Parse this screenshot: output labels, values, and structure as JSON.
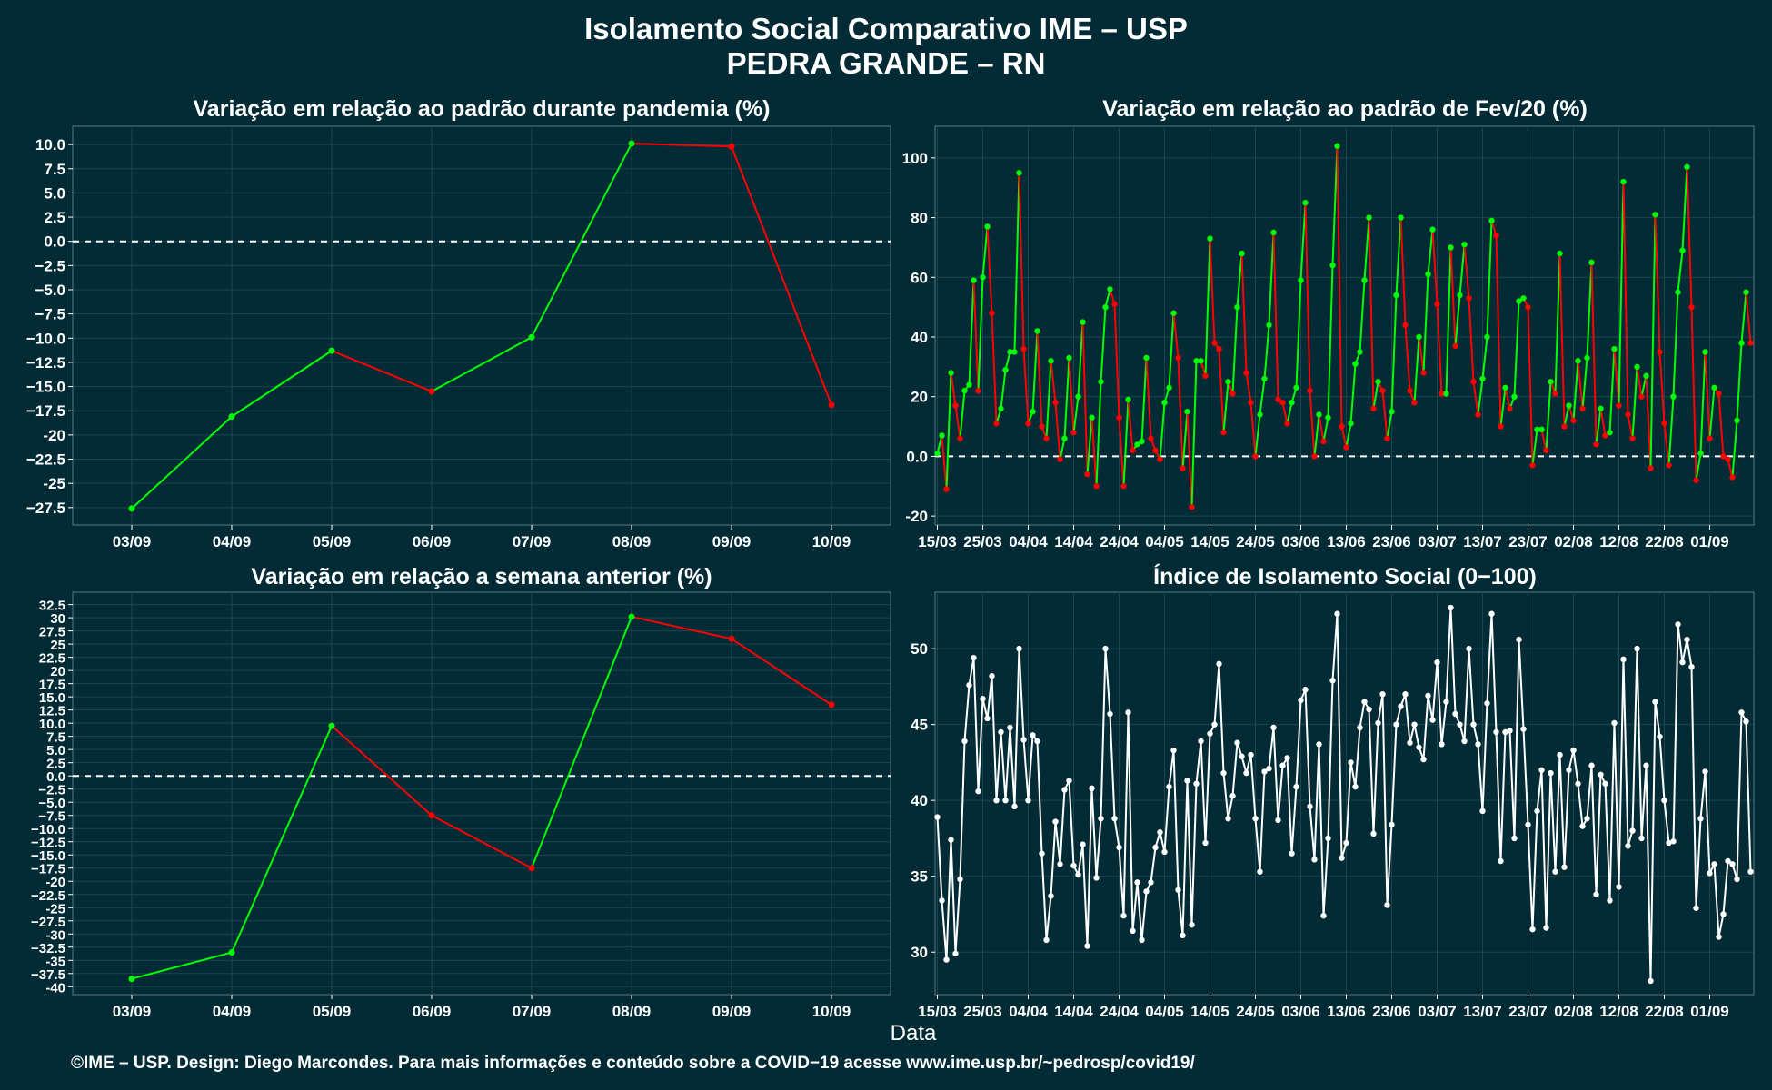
{
  "title_line1": "Isolamento Social Comparativo IME – USP",
  "title_line2": "PEDRA GRANDE – RN",
  "xlabel": "Data",
  "caption": "©IME – USP. Design: Diego Marcondes. Para mais informações e conteúdo sobre a COVID−19 acesse www.ime.usp.br/~pedrosp/covid19/",
  "colors": {
    "background": "#022b36",
    "positive": "#00ff00",
    "negative": "#ff0000",
    "index_line": "#ffffff",
    "grid": "#1c4550"
  },
  "chart_data": [
    {
      "id": "pandemia",
      "type": "line",
      "title": "Variação em relação ao padrão durante pandemia (%)",
      "categories": [
        "03/09",
        "04/09",
        "05/09",
        "06/09",
        "07/09",
        "08/09",
        "09/09",
        "10/09"
      ],
      "values": [
        -27.6,
        -18.1,
        -11.3,
        -15.5,
        -9.9,
        10.1,
        9.8,
        -16.9
      ],
      "ylim": [
        -29.3,
        11.7
      ],
      "yticks": [
        10.0,
        7.5,
        5.0,
        2.5,
        0.0,
        -2.5,
        -5.0,
        -7.5,
        -10.0,
        -12.5,
        -15.0,
        -17.5,
        -20.0,
        -22.5,
        -25.0,
        -27.5
      ],
      "zero_line": true,
      "color_rule": "green where the value rises, red where it falls"
    },
    {
      "id": "fev20",
      "type": "line",
      "title": "Variação em relação ao padrão de Fev/20 (%)",
      "x_tick_labels": [
        "15/03",
        "25/03",
        "04/04",
        "14/04",
        "24/04",
        "04/05",
        "14/05",
        "24/05",
        "03/06",
        "13/06",
        "23/06",
        "03/07",
        "13/07",
        "23/07",
        "02/08",
        "12/08",
        "22/08",
        "01/09"
      ],
      "start_date": "15/03",
      "values": [
        1,
        7,
        -11,
        28,
        17,
        6,
        22,
        24,
        59,
        22,
        60,
        77,
        48,
        11,
        16,
        29,
        35,
        35,
        95,
        36,
        11,
        15,
        42,
        10,
        6,
        32,
        18,
        -1,
        6,
        33,
        8,
        20,
        45,
        -6,
        13,
        -10,
        25,
        50,
        56,
        51,
        13,
        -10,
        19,
        2,
        4,
        5,
        33,
        6,
        2,
        -1,
        18,
        23,
        48,
        33,
        -4,
        15,
        -17,
        32,
        32,
        27,
        73,
        38,
        36,
        8,
        25,
        21,
        50,
        68,
        28,
        18,
        0,
        14,
        26,
        44,
        75,
        19,
        18,
        11,
        18,
        23,
        59,
        85,
        22,
        0,
        14,
        5,
        13,
        64,
        104,
        10,
        3,
        11,
        31,
        35,
        59,
        80,
        16,
        25,
        22,
        6,
        15,
        54,
        80,
        44,
        22,
        18,
        40,
        28,
        61,
        76,
        51,
        21,
        21,
        70,
        37,
        54,
        71,
        53,
        25,
        14,
        26,
        40,
        79,
        74,
        10,
        23,
        16,
        20,
        52,
        53,
        50,
        -3,
        9,
        9,
        2,
        25,
        21,
        68,
        10,
        17,
        12,
        32,
        16,
        33,
        65,
        4,
        16,
        7,
        8,
        36,
        17,
        92,
        14,
        6,
        30,
        20,
        27,
        -4,
        81,
        35,
        11,
        -3,
        20,
        55,
        69,
        97,
        50,
        -8,
        1,
        35,
        6,
        23,
        21,
        0,
        -1,
        -7,
        12,
        38,
        55,
        38
      ],
      "ylim": [
        -23,
        110
      ],
      "yticks": [
        100,
        80,
        60,
        40,
        20,
        0,
        -20
      ],
      "zero_line": true,
      "color_rule": "green where the value rises, red where it falls"
    },
    {
      "id": "semana",
      "type": "line",
      "title": "Variação em relação a semana anterior (%)",
      "categories": [
        "03/09",
        "04/09",
        "05/09",
        "06/09",
        "07/09",
        "08/09",
        "09/09",
        "10/09"
      ],
      "values": [
        -38.5,
        -33.5,
        9.5,
        -7.5,
        -17.5,
        30.2,
        26.0,
        13.5
      ],
      "ylim": [
        -41.5,
        34.5
      ],
      "yticks": [
        32.5,
        30.0,
        27.5,
        25.0,
        22.5,
        20.0,
        17.5,
        15.0,
        12.5,
        10.0,
        7.5,
        5.0,
        2.5,
        0.0,
        -2.5,
        -5.0,
        -7.5,
        -10.0,
        -12.5,
        -15.0,
        -17.5,
        -20.0,
        -22.5,
        -25.0,
        -27.5,
        -30.0,
        -32.5,
        -35.0,
        -37.5,
        -40.0
      ],
      "zero_line": true,
      "color_rule": "green where the value rises, red where it falls"
    },
    {
      "id": "indice",
      "type": "line",
      "title": "Índice de Isolamento Social (0−100)",
      "x_tick_labels": [
        "15/03",
        "25/03",
        "04/04",
        "14/04",
        "24/04",
        "04/05",
        "14/05",
        "24/05",
        "03/06",
        "13/06",
        "23/06",
        "03/07",
        "13/07",
        "23/07",
        "02/08",
        "12/08",
        "22/08",
        "01/09"
      ],
      "start_date": "15/03",
      "values": [
        38.9,
        33.4,
        29.5,
        37.4,
        29.9,
        34.8,
        43.9,
        47.6,
        49.4,
        40.6,
        46.7,
        45.4,
        48.2,
        40.0,
        44.5,
        40.0,
        44.8,
        39.6,
        50.0,
        44.0,
        40.0,
        44.3,
        43.9,
        36.5,
        30.8,
        33.7,
        38.6,
        35.8,
        40.7,
        41.3,
        35.7,
        35.1,
        37.1,
        30.4,
        40.8,
        34.9,
        38.8,
        50.0,
        45.7,
        38.8,
        36.9,
        32.4,
        45.8,
        31.4,
        34.6,
        30.8,
        34.0,
        34.6,
        36.9,
        37.9,
        36.6,
        40.9,
        43.3,
        34.1,
        31.1,
        41.3,
        31.8,
        41.1,
        43.9,
        37.2,
        44.4,
        45.0,
        49.0,
        41.8,
        38.8,
        40.3,
        43.8,
        42.9,
        41.8,
        43.0,
        38.8,
        35.3,
        41.9,
        42.1,
        44.8,
        38.7,
        42.3,
        42.8,
        36.5,
        40.9,
        46.6,
        47.3,
        39.6,
        36.1,
        43.7,
        32.4,
        37.5,
        47.9,
        52.3,
        36.2,
        37.2,
        42.5,
        40.9,
        44.8,
        46.5,
        46.0,
        37.8,
        45.1,
        47.0,
        33.1,
        38.4,
        45.0,
        46.2,
        47.0,
        43.8,
        45.0,
        43.5,
        42.7,
        46.9,
        45.3,
        49.1,
        43.7,
        46.5,
        52.7,
        45.7,
        45.0,
        43.9,
        50.0,
        45.0,
        43.7,
        39.3,
        46.4,
        52.3,
        44.5,
        36.0,
        44.5,
        44.6,
        37.5,
        50.6,
        44.7,
        38.4,
        31.5,
        39.3,
        42.0,
        31.6,
        41.8,
        35.3,
        43.0,
        35.6,
        42.0,
        43.3,
        41.1,
        38.3,
        38.8,
        42.3,
        33.8,
        41.7,
        41.1,
        33.4,
        45.1,
        34.3,
        49.3,
        37.0,
        38.0,
        50.0,
        37.5,
        42.3,
        28.1,
        46.5,
        44.2,
        40.0,
        37.2,
        37.3,
        51.6,
        49.1,
        50.6,
        48.8,
        32.9,
        38.8,
        41.9,
        35.2,
        35.8,
        31.0,
        32.5,
        36.0,
        35.8,
        34.8,
        45.8,
        45.2,
        35.3
      ],
      "ylim": [
        27.2,
        53.6
      ],
      "yticks": [
        50,
        45,
        40,
        35,
        30
      ],
      "zero_line": false
    }
  ]
}
